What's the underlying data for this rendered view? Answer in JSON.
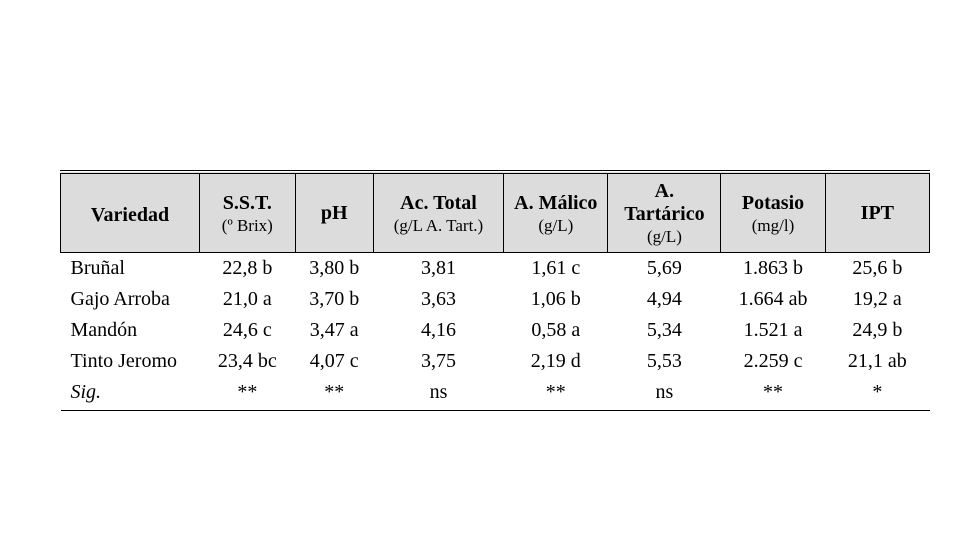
{
  "table": {
    "type": "table",
    "background_color": "#ffffff",
    "header_background": "#dcdcdc",
    "border_color": "#000000",
    "font_family": "Times New Roman",
    "columns": [
      {
        "key": "variedad",
        "main": "Variedad",
        "sub": "",
        "is_row_header": true,
        "width_pct": 16
      },
      {
        "key": "sst",
        "main": "S.S.T.",
        "sub": "(º Brix)",
        "width_pct": 11
      },
      {
        "key": "ph",
        "main": "pH",
        "sub": "",
        "width_pct": 9
      },
      {
        "key": "ac_total",
        "main": "Ac. Total",
        "sub": "(g/L A. Tart.)",
        "width_pct": 15
      },
      {
        "key": "a_malico",
        "main": "A. Málico",
        "sub": "(g/L)",
        "width_pct": 12
      },
      {
        "key": "a_tart",
        "main": "A. Tartárico",
        "sub": "(g/L)",
        "width_pct": 13
      },
      {
        "key": "potasio",
        "main": "Potasio",
        "sub": "(mg/l)",
        "width_pct": 12
      },
      {
        "key": "ipt",
        "main": "IPT",
        "sub": "",
        "width_pct": 12
      }
    ],
    "rows": [
      [
        "Bruñal",
        "22,8 b",
        "3,80 b",
        "3,81",
        "1,61 c",
        "5,69",
        "1.863 b",
        "25,6 b"
      ],
      [
        "Gajo Arroba",
        "21,0 a",
        "3,70 b",
        "3,63",
        "1,06 b",
        "4,94",
        "1.664 ab",
        "19,2 a"
      ],
      [
        "Mandón",
        "24,6 c",
        "3,47 a",
        "4,16",
        "0,58 a",
        "5,34",
        "1.521 a",
        "24,9 b"
      ],
      [
        "Tinto Jeromo",
        "23,4 bc",
        "4,07 c",
        "3,75",
        "2,19 d",
        "5,53",
        "2.259 c",
        "21,1 ab"
      ]
    ],
    "sig_label": "Sig.",
    "sig_row": [
      "**",
      "**",
      "ns",
      "**",
      "ns",
      "**",
      "*"
    ]
  }
}
